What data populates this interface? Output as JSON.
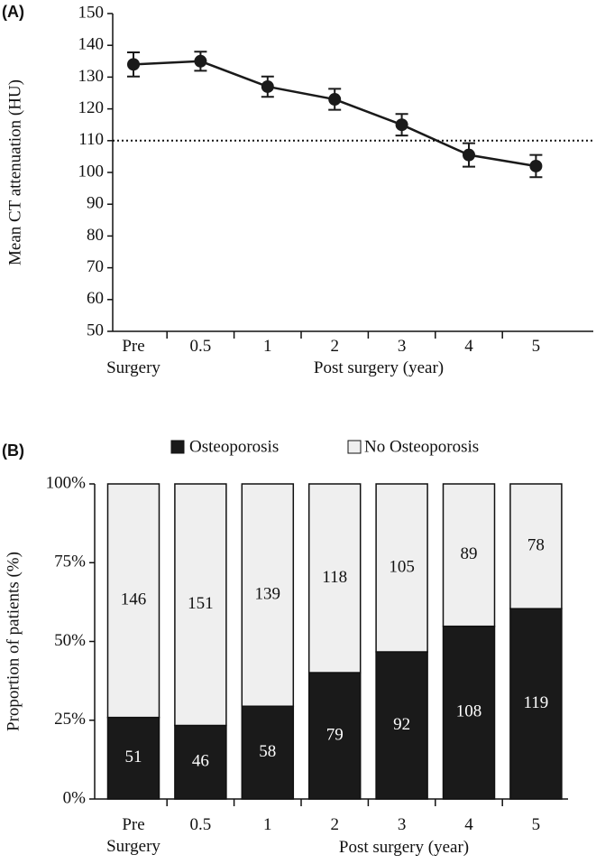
{
  "chart_data": [
    {
      "type": "line",
      "panel_label": "(A)",
      "y_label": "Mean CT attenuation (HU)",
      "x_label": "Post surgery (year)",
      "categories": [
        "Pre Surgery",
        "0.5",
        "1",
        "2",
        "3",
        "4",
        "5"
      ],
      "series": [
        {
          "color": "#1a1a1a",
          "values": [
            134,
            135,
            127,
            123,
            115,
            105.5,
            102
          ],
          "errors": [
            3.8,
            3,
            3.2,
            3.3,
            3.4,
            3.7,
            3.5
          ]
        }
      ],
      "ylim": [
        50,
        150
      ],
      "yticks": [
        50,
        60,
        70,
        80,
        90,
        100,
        110,
        120,
        130,
        140,
        150
      ],
      "reference_line": {
        "value": 110,
        "style": "dotted"
      }
    },
    {
      "type": "bar",
      "stacked": "percent",
      "panel_label": "(B)",
      "y_label": "Proportion of patients (%)",
      "x_label": "Post surgery (year)",
      "categories": [
        "Pre Surgery",
        "0.5",
        "1",
        "2",
        "3",
        "4",
        "5"
      ],
      "series": [
        {
          "name": "Osteoporosis",
          "color": "#1a1a1a",
          "values": [
            51,
            46,
            58,
            79,
            92,
            108,
            119
          ]
        },
        {
          "name": "No Osteoporosis",
          "color": "#efefef",
          "values": [
            146,
            151,
            139,
            118,
            105,
            89,
            78
          ]
        }
      ],
      "ylim": [
        0,
        100
      ],
      "yticks": [
        {
          "value": 0,
          "label": "0%"
        },
        {
          "value": 25,
          "label": "25%"
        },
        {
          "value": 50,
          "label": "50%"
        },
        {
          "value": 75,
          "label": "75%"
        },
        {
          "value": 100,
          "label": "100%"
        }
      ],
      "legend": "top"
    }
  ]
}
